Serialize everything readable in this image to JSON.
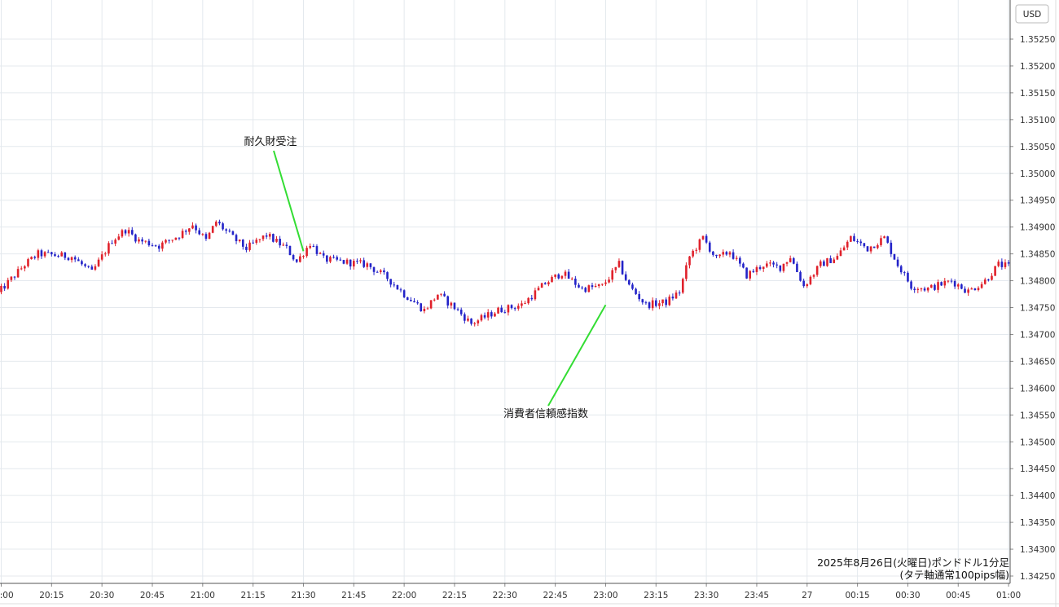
{
  "chart_data": {
    "type": "candlestick",
    "currency_label": "USD",
    "caption_line1": "2025年8月26日(火曜日)ポンドドル1分足",
    "caption_line2": "(タテ軸通常100pips幅)",
    "grid": true,
    "ylim": [
      1.34235,
      1.35285
    ],
    "y_ticks": [
      "1.35250",
      "1.35200",
      "1.35150",
      "1.35100",
      "1.35050",
      "1.35000",
      "1.34950",
      "1.34900",
      "1.34850",
      "1.34800",
      "1.34750",
      "1.34700",
      "1.34650",
      "1.34600",
      "1.34550",
      "1.34500",
      "1.34450",
      "1.34400",
      "1.34350",
      "1.34300",
      "1.34250"
    ],
    "x_ticks": [
      {
        "label": "20:00",
        "minute": 0
      },
      {
        "label": "20:15",
        "minute": 15
      },
      {
        "label": "20:30",
        "minute": 30
      },
      {
        "label": "20:45",
        "minute": 45
      },
      {
        "label": "21:00",
        "minute": 60
      },
      {
        "label": "21:15",
        "minute": 75
      },
      {
        "label": "21:30",
        "minute": 90
      },
      {
        "label": "21:45",
        "minute": 105
      },
      {
        "label": "22:00",
        "minute": 120
      },
      {
        "label": "22:15",
        "minute": 135
      },
      {
        "label": "22:30",
        "minute": 150
      },
      {
        "label": "22:45",
        "minute": 165
      },
      {
        "label": "23:00",
        "minute": 180
      },
      {
        "label": "23:15",
        "minute": 195
      },
      {
        "label": "23:30",
        "minute": 210
      },
      {
        "label": "23:45",
        "minute": 225
      },
      {
        "label": "27",
        "minute": 240
      },
      {
        "label": "00:15",
        "minute": 255
      },
      {
        "label": "00:30",
        "minute": 270
      },
      {
        "label": "00:45",
        "minute": 285
      },
      {
        "label": "01:00",
        "minute": 300
      }
    ],
    "up_color": "#e0212b",
    "down_color": "#2323c8",
    "annotation_color": "#33dd33",
    "annotations": [
      {
        "text": "耐久財受注",
        "minute": 90,
        "price": 1.34855
      },
      {
        "text": "消費者信頼感指数",
        "minute": 180,
        "price": 1.34755
      }
    ],
    "candle_minutes": [
      -1,
      302
    ],
    "anchors": [
      [
        -1,
        1.3477
      ],
      [
        8,
        1.3483
      ],
      [
        12,
        1.3485
      ],
      [
        22,
        1.34845
      ],
      [
        28,
        1.34815
      ],
      [
        34,
        1.34875
      ],
      [
        38,
        1.34895
      ],
      [
        42,
        1.34875
      ],
      [
        48,
        1.34865
      ],
      [
        54,
        1.34885
      ],
      [
        58,
        1.34905
      ],
      [
        62,
        1.34875
      ],
      [
        65,
        1.3491
      ],
      [
        70,
        1.3488
      ],
      [
        74,
        1.3486
      ],
      [
        80,
        1.34885
      ],
      [
        86,
        1.3486
      ],
      [
        89,
        1.34835
      ],
      [
        93,
        1.3487
      ],
      [
        97,
        1.3484
      ],
      [
        103,
        1.34835
      ],
      [
        110,
        1.3483
      ],
      [
        116,
        1.34805
      ],
      [
        121,
        1.34775
      ],
      [
        127,
        1.34745
      ],
      [
        131,
        1.34775
      ],
      [
        136,
        1.3475
      ],
      [
        141,
        1.3472
      ],
      [
        149,
        1.34745
      ],
      [
        156,
        1.34755
      ],
      [
        163,
        1.34795
      ],
      [
        168,
        1.34815
      ],
      [
        174,
        1.34785
      ],
      [
        180,
        1.3479
      ],
      [
        185,
        1.3483
      ],
      [
        188,
        1.3479
      ],
      [
        193,
        1.34755
      ],
      [
        199,
        1.3476
      ],
      [
        203,
        1.3478
      ],
      [
        206,
        1.34845
      ],
      [
        210,
        1.3488
      ],
      [
        214,
        1.3484
      ],
      [
        218,
        1.34855
      ],
      [
        223,
        1.3481
      ],
      [
        228,
        1.3483
      ],
      [
        233,
        1.34825
      ],
      [
        236,
        1.34845
      ],
      [
        240,
        1.3479
      ],
      [
        245,
        1.3483
      ],
      [
        250,
        1.34845
      ],
      [
        254,
        1.3488
      ],
      [
        259,
        1.3486
      ],
      [
        264,
        1.3488
      ],
      [
        268,
        1.3483
      ],
      [
        272,
        1.3479
      ],
      [
        277,
        1.34785
      ],
      [
        284,
        1.348
      ],
      [
        289,
        1.3478
      ],
      [
        294,
        1.348
      ],
      [
        298,
        1.3483
      ],
      [
        302,
        1.34825
      ]
    ]
  }
}
